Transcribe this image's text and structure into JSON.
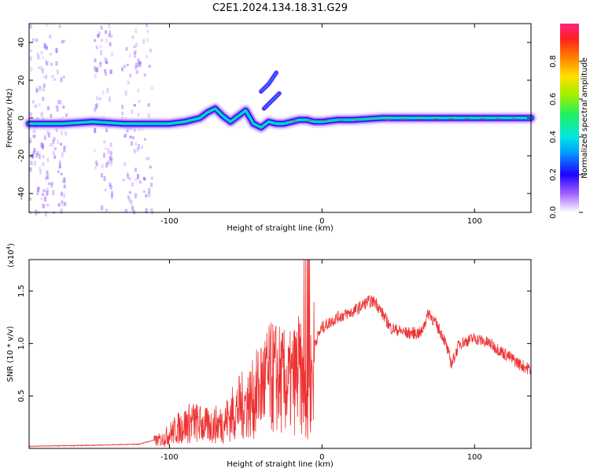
{
  "title": "C2E1.2024.134.18.31.G29",
  "colors": {
    "snr_line": "#ee3333",
    "ridge_core": "#00e0a0",
    "ridge_edge": "#3300ff",
    "noise": "#a070ff"
  },
  "chart_data": [
    {
      "type": "heatmap",
      "title": "C2E1.2024.134.18.31.G29",
      "xlabel": "Height of straight line (km)",
      "ylabel": "Frequency (Hz)",
      "xlim": [
        -192,
        137
      ],
      "ylim": [
        -50,
        50
      ],
      "xticks": [
        -100,
        0,
        100
      ],
      "yticks": [
        -40,
        -20,
        0,
        20,
        40
      ],
      "colorbar": {
        "label": "Normalized spectral amplitude",
        "range": [
          0,
          1
        ],
        "ticks": [
          "0.0",
          "0.2",
          "0.4",
          "0.6",
          "0.8"
        ],
        "tick_values": [
          0,
          0.2,
          0.4,
          0.6,
          0.8
        ],
        "colormap": "rainbow"
      },
      "ridge": {
        "x": [
          -192,
          -170,
          -150,
          -130,
          -110,
          -100,
          -90,
          -80,
          -75,
          -70,
          -65,
          -60,
          -55,
          -50,
          -45,
          -40,
          -35,
          -30,
          -25,
          -20,
          -15,
          -10,
          -5,
          0,
          10,
          20,
          40,
          60,
          80,
          100,
          120,
          137
        ],
        "y": [
          -3,
          -3,
          -2,
          -3,
          -3,
          -3,
          -2,
          0,
          3,
          5,
          1,
          -2,
          1,
          4,
          -3,
          -5,
          -2,
          -3,
          -3,
          -2,
          -1,
          -1,
          -2,
          -2,
          -1,
          -1,
          0,
          0,
          0,
          0,
          0,
          0
        ]
      },
      "branches": [
        {
          "x": [
            -40,
            -35,
            -30
          ],
          "y": [
            14,
            18,
            24
          ]
        },
        {
          "x": [
            -38,
            -33,
            -28
          ],
          "y": [
            5,
            9,
            13
          ]
        }
      ]
    },
    {
      "type": "line",
      "xlabel": "Height of straight line (km)",
      "ylabel": "SNR (10 * v/v)",
      "scale_label": "(x10",
      "scale_exp": "4",
      "scale_suffix": ")",
      "xlim": [
        -192,
        137
      ],
      "ylim": [
        0,
        1.8
      ],
      "xticks": [
        -100,
        0,
        100
      ],
      "yticks": [
        0.5,
        1.0,
        1.5
      ],
      "ytick_labels": [
        "0.5",
        "1.0",
        "1.5"
      ],
      "series": [
        {
          "x": [
            -192,
            -150,
            -120,
            -105,
            -95,
            -85,
            -75,
            -65,
            -55,
            -45,
            -38,
            -30,
            -22,
            -15,
            -10,
            -5,
            0,
            10,
            20,
            30,
            35,
            45,
            55,
            65,
            70,
            80,
            85,
            90,
            100,
            110,
            120,
            130,
            137
          ],
          "y": [
            0.02,
            0.03,
            0.04,
            0.1,
            0.22,
            0.3,
            0.25,
            0.28,
            0.45,
            0.55,
            0.75,
            0.8,
            0.7,
            0.85,
            0.5,
            1.0,
            1.15,
            1.25,
            1.3,
            1.4,
            1.4,
            1.15,
            1.1,
            1.1,
            1.3,
            1.05,
            0.8,
            1.0,
            1.05,
            1.0,
            0.9,
            0.8,
            0.75
          ]
        }
      ]
    }
  ]
}
